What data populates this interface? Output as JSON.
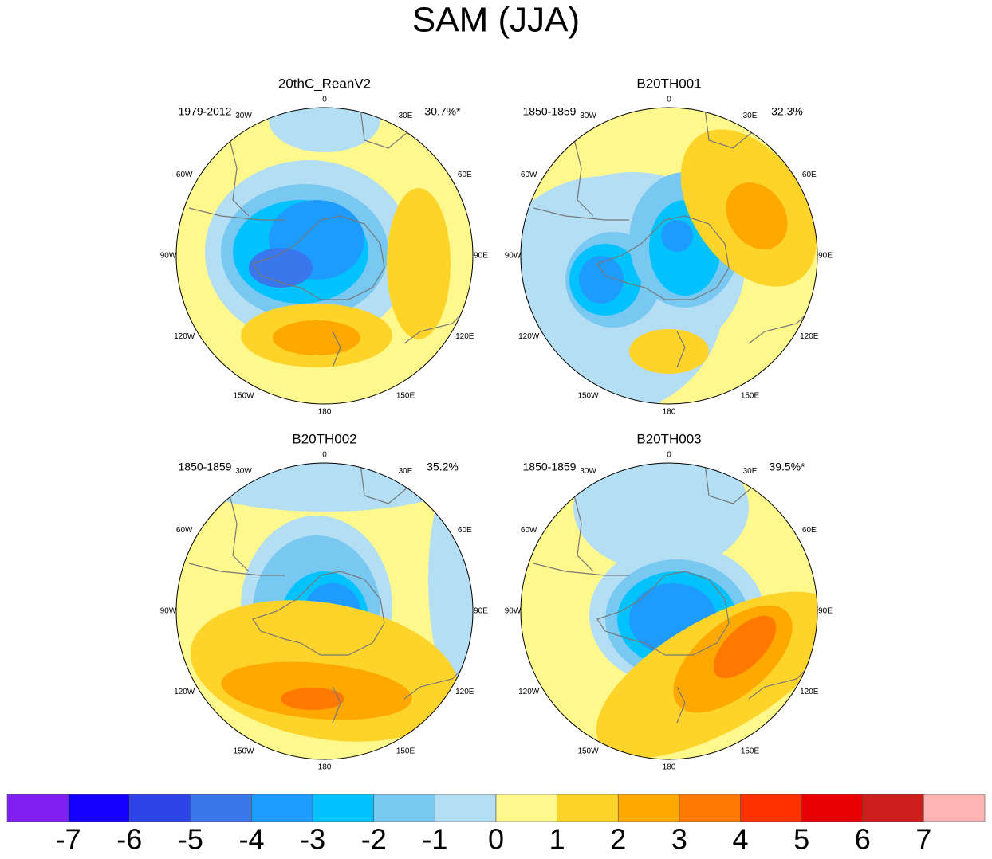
{
  "title": "SAM (JJA)",
  "panels": [
    {
      "title": "20thC_ReanV2",
      "period": "1979-2012",
      "variance": "30.7%*"
    },
    {
      "title": "B20TH001",
      "period": "1850-1859",
      "variance": "32.3%"
    },
    {
      "title": "B20TH002",
      "period": "1850-1859",
      "variance": "35.2%"
    },
    {
      "title": "B20TH003",
      "period": "1850-1859",
      "variance": "39.5%*"
    }
  ],
  "longitude_labels": [
    "0",
    "30E",
    "60E",
    "90E",
    "120E",
    "150E",
    "180",
    "150W",
    "120W",
    "90W",
    "60W",
    "30W"
  ],
  "colorbar": {
    "levels": [
      -7,
      -6,
      -5,
      -4,
      -3,
      -2,
      -1,
      0,
      1,
      2,
      3,
      4,
      5,
      6,
      7
    ],
    "colors": [
      "#7f1ff2",
      "#1400ff",
      "#2e44e8",
      "#3a76ec",
      "#1e9bff",
      "#00c2ff",
      "#78c8f2",
      "#b4def4",
      "#fff88c",
      "#ffd42a",
      "#ffa800",
      "#ff7800",
      "#ff3200",
      "#e60000",
      "#cd1e1e",
      "#ffb4b4"
    ]
  }
}
